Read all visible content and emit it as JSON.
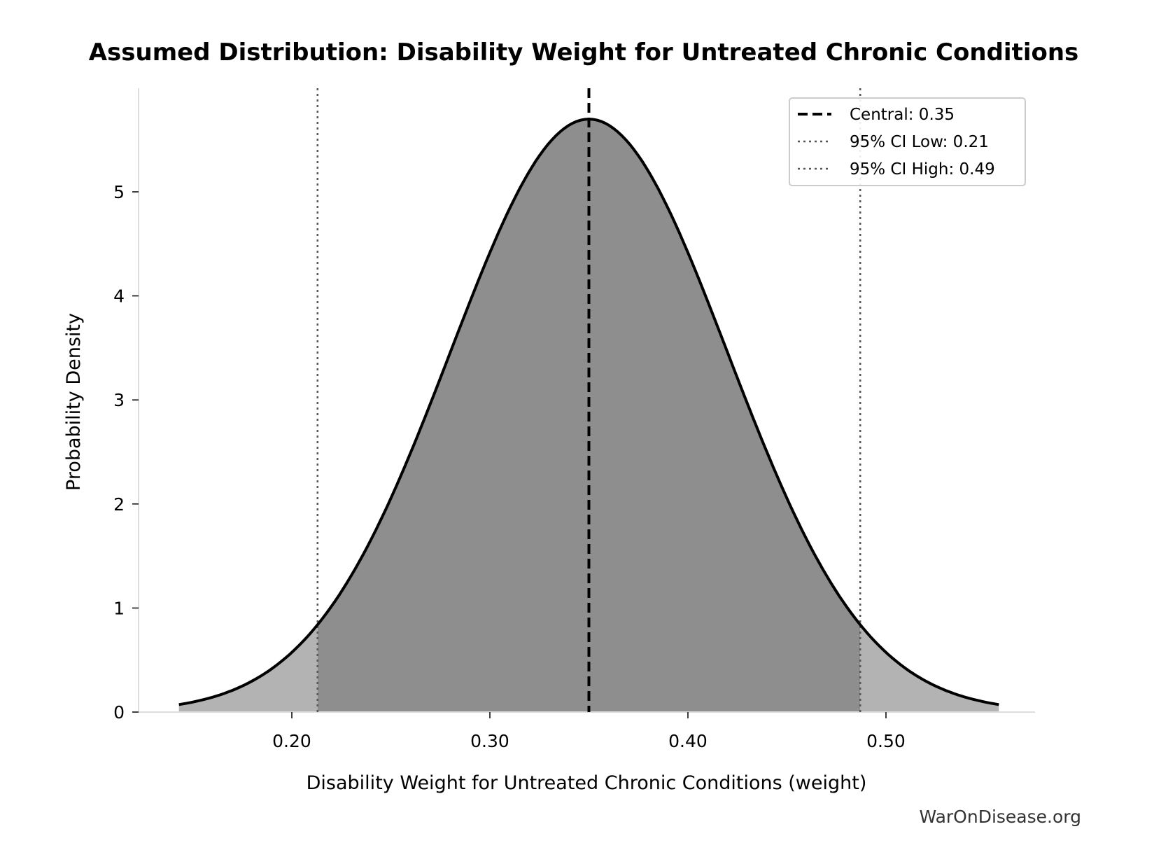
{
  "chart_data": {
    "type": "area",
    "title": "Assumed Distribution: Disability Weight for Untreated Chronic Conditions",
    "xlabel": "Disability Weight for Untreated Chronic Conditions (weight)",
    "ylabel": "Probability Density",
    "xlim": [
      0.123,
      0.57
    ],
    "ylim": [
      0,
      5.98
    ],
    "x_ticks": [
      "0.20",
      "0.30",
      "0.40",
      "0.50"
    ],
    "x_tick_values": [
      0.2,
      0.3,
      0.4,
      0.5
    ],
    "y_ticks": [
      "0",
      "1",
      "2",
      "3",
      "4",
      "5"
    ],
    "y_tick_values": [
      0,
      1,
      2,
      3,
      4,
      5
    ],
    "grid": false,
    "distribution": {
      "kind": "normal",
      "mean": 0.35,
      "sd": 0.07,
      "x_range": [
        0.143,
        0.557
      ],
      "peak_density": 5.7
    },
    "shading": {
      "ci_fill": "#8e8e8e",
      "tail_fill": "#b3b3b3"
    },
    "lines": [
      {
        "name": "Central: 0.35",
        "x": 0.35,
        "style": "dashed",
        "color": "#000000"
      },
      {
        "name": "95% CI Low: 0.21",
        "x": 0.213,
        "style": "dotted",
        "color": "#555555"
      },
      {
        "name": "95% CI High: 0.49",
        "x": 0.487,
        "style": "dotted",
        "color": "#555555"
      }
    ],
    "legend_placement": "top-right",
    "watermark": "WarOnDisease.org"
  }
}
